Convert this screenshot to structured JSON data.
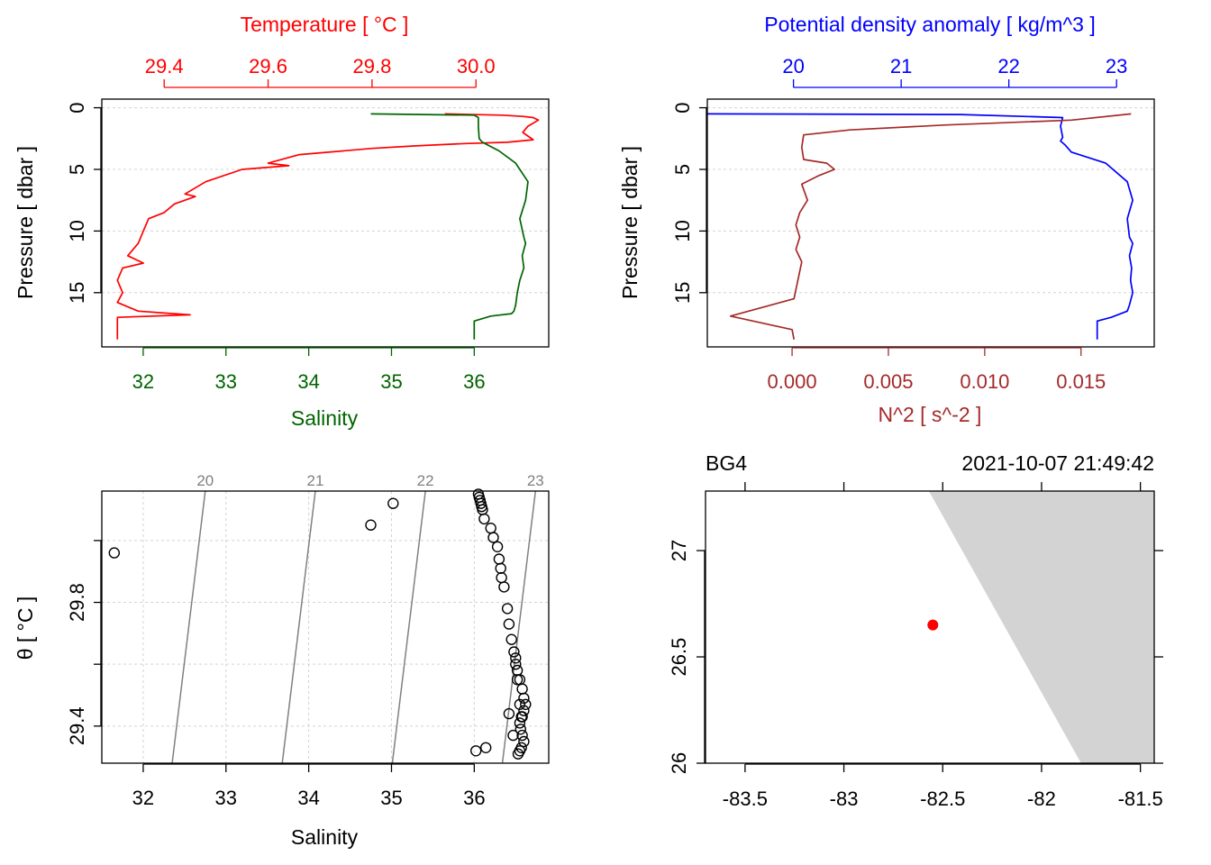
{
  "colors": {
    "temperature": "#ff0000",
    "salinity": "#006400",
    "density": "#0000ff",
    "n2": "#a52a2a",
    "axis": "#000000",
    "grid": "#d3d3d3",
    "isopycnal": "#808080",
    "land": "#d3d3d3",
    "station": "#ff0000"
  },
  "chart_data": [
    {
      "id": "profile-ts",
      "type": "line",
      "top_axis": {
        "label": "Temperature [ °C ]",
        "range": [
          29.28,
          30.14
        ],
        "ticks": [
          29.4,
          29.6,
          29.8,
          30.0
        ],
        "tick_labels": [
          "29.4",
          "29.6",
          "29.8",
          "30.0"
        ]
      },
      "bottom_axis": {
        "label": "Salinity",
        "range": [
          31.5,
          36.9
        ],
        "ticks": [
          32,
          33,
          34,
          35,
          36
        ],
        "tick_labels": [
          "32",
          "33",
          "34",
          "35",
          "36"
        ]
      },
      "y_axis": {
        "label": "Pressure [ dbar ]",
        "range": [
          19.4,
          -0.7
        ],
        "ticks": [
          0,
          5,
          10,
          15
        ],
        "tick_labels": [
          "0",
          "5",
          "10",
          "15"
        ]
      },
      "series": [
        {
          "name": "Temperature",
          "axis": "top",
          "x": [
            29.94,
            30.05,
            30.09,
            30.11,
            30.12,
            30.1,
            30.09,
            30.1,
            30.11,
            30.06,
            29.98,
            29.88,
            29.8,
            29.66,
            29.6,
            29.64,
            29.55,
            29.48,
            29.44,
            29.46,
            29.42,
            29.4,
            29.37,
            29.36,
            29.35,
            29.34,
            29.33,
            29.36,
            29.32,
            29.31,
            29.32,
            29.31,
            29.35,
            29.45,
            29.31,
            29.31,
            29.31
          ],
          "y": [
            0.5,
            0.6,
            0.7,
            0.8,
            1.0,
            1.5,
            2.0,
            2.3,
            2.6,
            2.8,
            2.9,
            3.1,
            3.3,
            3.8,
            4.5,
            4.7,
            5.0,
            6.0,
            7.0,
            7.2,
            7.8,
            8.5,
            9.0,
            10.0,
            11.0,
            11.5,
            12.0,
            12.6,
            13.0,
            14.0,
            15.0,
            15.8,
            16.5,
            16.8,
            17.0,
            18.0,
            18.8
          ]
        },
        {
          "name": "Salinity",
          "axis": "bottom",
          "x": [
            34.75,
            36.0,
            36.05,
            36.05,
            36.06,
            36.1,
            36.3,
            36.5,
            36.65,
            36.62,
            36.55,
            36.6,
            36.62,
            36.58,
            36.6,
            36.55,
            36.52,
            36.5,
            36.48,
            36.45,
            36.2,
            36.0,
            36.0
          ],
          "y": [
            0.5,
            0.6,
            0.8,
            1.5,
            2.5,
            2.8,
            3.5,
            4.5,
            6.0,
            7.5,
            9.0,
            10.5,
            11.0,
            12.0,
            13.0,
            14.0,
            15.0,
            16.0,
            16.5,
            16.7,
            16.9,
            17.3,
            18.8
          ]
        }
      ]
    },
    {
      "id": "profile-density",
      "type": "line",
      "top_axis": {
        "label": "Potential density anomaly [ kg/m^3 ]",
        "range": [
          19.2,
          23.35
        ],
        "ticks": [
          20,
          21,
          22,
          23
        ],
        "tick_labels": [
          "20",
          "21",
          "22",
          "23"
        ]
      },
      "bottom_axis": {
        "label": "N^2 [ s^-2 ]",
        "range": [
          -0.0044,
          0.0188
        ],
        "ticks": [
          0.0,
          0.005,
          0.01,
          0.015
        ],
        "tick_labels": [
          "0.000",
          "0.005",
          "0.010",
          "0.015"
        ]
      },
      "y_axis": {
        "label": "Pressure [ dbar ]",
        "range": [
          19.4,
          -0.7
        ],
        "ticks": [
          0,
          5,
          10,
          15
        ],
        "tick_labels": [
          "0",
          "5",
          "10",
          "15"
        ]
      },
      "series": [
        {
          "name": "Potential density anomaly",
          "axis": "top",
          "x": [
            19.2,
            21.55,
            22.5,
            22.48,
            22.5,
            22.48,
            22.52,
            22.58,
            22.9,
            23.1,
            23.15,
            23.1,
            23.12,
            23.15,
            23.12,
            23.14,
            23.13,
            23.15,
            23.12,
            23.1,
            22.95,
            22.82,
            22.82
          ],
          "y": [
            0.5,
            0.55,
            0.8,
            1.5,
            2.4,
            2.7,
            3.0,
            3.6,
            4.5,
            6.0,
            7.5,
            9.0,
            10.5,
            11.0,
            12.0,
            13.0,
            14.0,
            15.0,
            16.0,
            16.5,
            17.0,
            17.3,
            18.8
          ]
        },
        {
          "name": "N2",
          "axis": "bottom",
          "x": [
            0.0176,
            0.0145,
            0.008,
            0.003,
            0.0006,
            0.0005,
            0.0006,
            0.0018,
            0.0022,
            0.0014,
            0.0005,
            0.0008,
            0.0004,
            0.0002,
            0.0004,
            0.0002,
            0.0005,
            0.0003,
            0.0001,
            -0.0032,
            0.0,
            0.0001
          ],
          "y": [
            0.5,
            1.0,
            1.4,
            1.8,
            2.2,
            3.2,
            4.2,
            4.5,
            5.0,
            5.5,
            6.2,
            7.5,
            8.5,
            9.5,
            10.5,
            11.5,
            12.5,
            14.0,
            15.5,
            16.9,
            18.0,
            18.8
          ]
        }
      ]
    },
    {
      "id": "ts-diagram",
      "type": "scatter",
      "title": "",
      "xlabel": "Salinity",
      "ylabel": "θ [ °C ]",
      "xlim": [
        31.5,
        36.9
      ],
      "ylim": [
        29.28,
        30.16
      ],
      "x_ticks": [
        32,
        33,
        34,
        35,
        36
      ],
      "x_tick_labels": [
        "32",
        "33",
        "34",
        "35",
        "36"
      ],
      "y_ticks": [
        29.4,
        29.8
      ],
      "y_tick_labels": [
        "29.4",
        "29.8"
      ],
      "isopycnals": [
        {
          "label": "20",
          "s_bottom": 32.35,
          "s_top": 32.75
        },
        {
          "label": "21",
          "s_bottom": 33.68,
          "s_top": 34.08
        },
        {
          "label": "22",
          "s_bottom": 35.01,
          "s_top": 35.41
        },
        {
          "label": "23",
          "s_bottom": 36.34,
          "s_top": 36.74
        }
      ],
      "points": {
        "salinity": [
          31.65,
          34.75,
          35.02,
          36.02,
          36.14,
          36.05,
          36.06,
          36.07,
          36.08,
          36.09,
          36.1,
          36.12,
          36.2,
          36.23,
          36.28,
          36.3,
          36.32,
          36.33,
          36.36,
          36.4,
          36.42,
          36.45,
          36.48,
          36.5,
          36.52,
          36.55,
          36.58,
          36.6,
          36.62,
          36.6,
          36.58,
          36.55,
          36.56,
          36.58,
          36.6,
          36.57,
          36.55,
          36.53,
          36.47,
          36.42,
          36.5,
          36.52,
          36.55,
          36.57
        ],
        "theta": [
          29.96,
          30.05,
          30.12,
          29.32,
          29.33,
          30.15,
          30.14,
          30.13,
          30.12,
          30.11,
          30.1,
          30.07,
          30.04,
          30.01,
          29.98,
          29.94,
          29.91,
          29.88,
          29.85,
          29.78,
          29.73,
          29.68,
          29.64,
          29.6,
          29.58,
          29.55,
          29.52,
          29.49,
          29.47,
          29.45,
          29.43,
          29.41,
          29.39,
          29.37,
          29.35,
          29.33,
          29.32,
          29.31,
          29.37,
          29.44,
          29.62,
          29.55,
          29.47,
          29.43
        ]
      }
    },
    {
      "id": "station-map",
      "type": "scatter",
      "title_left": "BG4",
      "title_right": "2021-10-07 21:49:42",
      "xlim": [
        -83.7,
        -81.43
      ],
      "ylim": [
        26.0,
        27.28
      ],
      "x_ticks": [
        -83.5,
        -83,
        -82.5,
        -82,
        -81.5
      ],
      "x_tick_labels": [
        "-83.5",
        "-83",
        "-82.5",
        "-82",
        "-81.5"
      ],
      "y_ticks": [
        26,
        26.5,
        27
      ],
      "y_tick_labels": [
        "26",
        "26.5",
        "27"
      ],
      "coastline": {
        "lon": [
          -82.57,
          -81.43,
          -81.43,
          -81.8
        ],
        "lat": [
          27.28,
          27.28,
          26.0,
          26.0
        ]
      },
      "station": {
        "lon": -82.55,
        "lat": 26.65
      }
    }
  ]
}
